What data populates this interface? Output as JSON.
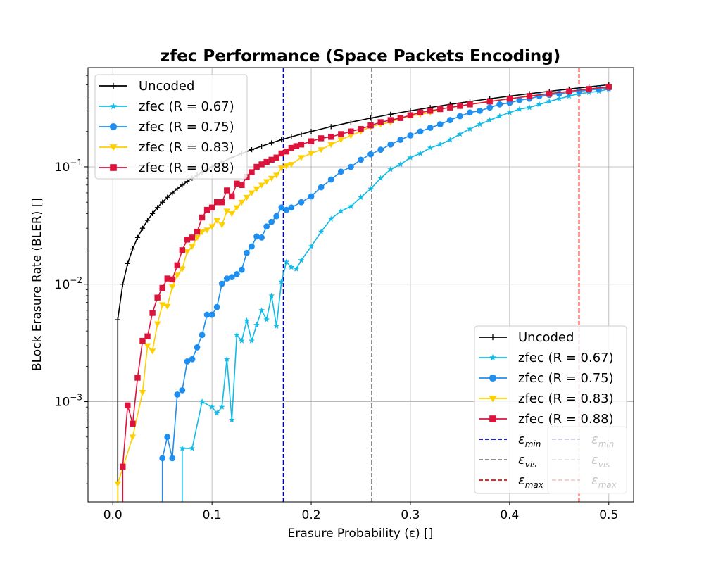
{
  "chart_data": {
    "type": "line",
    "title": "zfec Performance (Space Packets Encoding)",
    "xlabel": "Erasure Probability (ε) []",
    "ylabel": "BLock Erasure Rate (BLER) []",
    "xlim": [
      -0.025,
      0.525
    ],
    "ylim": [
      0.00014,
      0.7
    ],
    "yscale": "log",
    "grid": true,
    "x_ticks": [
      0.0,
      0.1,
      0.2,
      0.3,
      0.4,
      0.5
    ],
    "x_tick_labels": [
      "0.0",
      "0.1",
      "0.2",
      "0.3",
      "0.4",
      "0.5"
    ],
    "y_ticks": [
      0.001,
      0.01,
      0.1
    ],
    "y_tick_labels": [
      {
        "base": "10",
        "exp": "−3"
      },
      {
        "base": "10",
        "exp": "−2"
      },
      {
        "base": "10",
        "exp": "−1"
      }
    ],
    "vlines": [
      {
        "label": "ε",
        "sub": "min",
        "x": 0.172,
        "color": "#0000cc"
      },
      {
        "label": "ε",
        "sub": "vis",
        "x": 0.261,
        "color": "#808080"
      },
      {
        "label": "ε",
        "sub": "max",
        "x": 0.47,
        "color": "#dd1111"
      }
    ],
    "legend_positions": [
      "upper-left",
      "lower-right"
    ],
    "series": [
      {
        "name": "Uncoded",
        "color": "#000000",
        "marker": "plus",
        "x": [
          0.005,
          0.01,
          0.015,
          0.02,
          0.025,
          0.03,
          0.035,
          0.04,
          0.045,
          0.05,
          0.055,
          0.06,
          0.065,
          0.07,
          0.075,
          0.08,
          0.085,
          0.09,
          0.095,
          0.1,
          0.11,
          0.12,
          0.13,
          0.14,
          0.15,
          0.16,
          0.17,
          0.18,
          0.19,
          0.2,
          0.22,
          0.24,
          0.26,
          0.28,
          0.3,
          0.32,
          0.34,
          0.36,
          0.38,
          0.4,
          0.42,
          0.44,
          0.46,
          0.48,
          0.5
        ],
        "y": [
          0.005,
          0.01,
          0.015,
          0.02,
          0.025,
          0.03,
          0.035,
          0.04,
          0.045,
          0.05,
          0.055,
          0.06,
          0.065,
          0.07,
          0.075,
          0.08,
          0.085,
          0.09,
          0.095,
          0.1,
          0.11,
          0.12,
          0.13,
          0.14,
          0.15,
          0.16,
          0.17,
          0.18,
          0.19,
          0.2,
          0.22,
          0.24,
          0.26,
          0.28,
          0.3,
          0.32,
          0.34,
          0.36,
          0.38,
          0.4,
          0.42,
          0.44,
          0.46,
          0.48,
          0.5
        ]
      },
      {
        "name": "zfec (R = 0.67)",
        "color": "#11bbe8",
        "marker": "star",
        "x": [
          0.07,
          0.08,
          0.09,
          0.1,
          0.105,
          0.11,
          0.115,
          0.12,
          0.125,
          0.13,
          0.135,
          0.14,
          0.145,
          0.15,
          0.155,
          0.16,
          0.165,
          0.17,
          0.175,
          0.18,
          0.185,
          0.19,
          0.2,
          0.21,
          0.22,
          0.23,
          0.24,
          0.25,
          0.26,
          0.27,
          0.28,
          0.29,
          0.3,
          0.31,
          0.32,
          0.33,
          0.34,
          0.35,
          0.36,
          0.37,
          0.38,
          0.39,
          0.4,
          0.41,
          0.42,
          0.43,
          0.44,
          0.45,
          0.46,
          0.47,
          0.48,
          0.49,
          0.5
        ],
        "y": [
          0.0004,
          0.0004,
          0.001,
          0.0009,
          0.0008,
          0.0009,
          0.0023,
          0.0007,
          0.0037,
          0.0033,
          0.0049,
          0.0033,
          0.0045,
          0.006,
          0.005,
          0.008,
          0.0044,
          0.0105,
          0.0155,
          0.014,
          0.0135,
          0.016,
          0.021,
          0.028,
          0.036,
          0.042,
          0.046,
          0.055,
          0.065,
          0.08,
          0.095,
          0.105,
          0.12,
          0.13,
          0.145,
          0.155,
          0.17,
          0.19,
          0.21,
          0.23,
          0.25,
          0.27,
          0.29,
          0.31,
          0.32,
          0.34,
          0.36,
          0.38,
          0.4,
          0.42,
          0.43,
          0.44,
          0.46
        ]
      },
      {
        "name": "zfec (R = 0.75)",
        "color": "#1e8ff0",
        "marker": "circle",
        "x": [
          0.05,
          0.055,
          0.06,
          0.065,
          0.07,
          0.075,
          0.08,
          0.085,
          0.09,
          0.095,
          0.1,
          0.105,
          0.11,
          0.115,
          0.12,
          0.125,
          0.13,
          0.135,
          0.14,
          0.145,
          0.15,
          0.155,
          0.16,
          0.165,
          0.17,
          0.175,
          0.18,
          0.19,
          0.2,
          0.21,
          0.22,
          0.23,
          0.24,
          0.25,
          0.26,
          0.27,
          0.28,
          0.29,
          0.3,
          0.31,
          0.32,
          0.33,
          0.34,
          0.35,
          0.36,
          0.37,
          0.38,
          0.39,
          0.4,
          0.41,
          0.42,
          0.43,
          0.44,
          0.45,
          0.46,
          0.47,
          0.48,
          0.49,
          0.5
        ],
        "y": [
          0.00033,
          0.0005,
          0.00033,
          0.00115,
          0.00125,
          0.0022,
          0.0023,
          0.0029,
          0.0037,
          0.0055,
          0.0055,
          0.0064,
          0.0101,
          0.0112,
          0.0115,
          0.0122,
          0.0133,
          0.0185,
          0.021,
          0.0255,
          0.025,
          0.031,
          0.034,
          0.038,
          0.045,
          0.043,
          0.045,
          0.05,
          0.056,
          0.067,
          0.078,
          0.091,
          0.1,
          0.115,
          0.128,
          0.14,
          0.155,
          0.17,
          0.185,
          0.2,
          0.215,
          0.23,
          0.25,
          0.27,
          0.29,
          0.3,
          0.32,
          0.34,
          0.35,
          0.37,
          0.38,
          0.4,
          0.41,
          0.42,
          0.43,
          0.44,
          0.45,
          0.46,
          0.47
        ]
      },
      {
        "name": "zfec (R = 0.83)",
        "color": "#ffd000",
        "marker": "triangle-down",
        "x": [
          0.005,
          0.02,
          0.03,
          0.035,
          0.04,
          0.045,
          0.05,
          0.055,
          0.06,
          0.065,
          0.07,
          0.075,
          0.08,
          0.085,
          0.09,
          0.095,
          0.1,
          0.105,
          0.11,
          0.115,
          0.12,
          0.125,
          0.13,
          0.135,
          0.14,
          0.145,
          0.15,
          0.155,
          0.16,
          0.165,
          0.17,
          0.175,
          0.18,
          0.19,
          0.2,
          0.21,
          0.22,
          0.23,
          0.24,
          0.25,
          0.26,
          0.27,
          0.28,
          0.29,
          0.3,
          0.31,
          0.32,
          0.33,
          0.34,
          0.35,
          0.36,
          0.38,
          0.4,
          0.42,
          0.44,
          0.46,
          0.48,
          0.5
        ],
        "y": [
          0.0002,
          0.0005,
          0.0012,
          0.003,
          0.0027,
          0.0046,
          0.0067,
          0.0065,
          0.0095,
          0.012,
          0.0135,
          0.019,
          0.021,
          0.025,
          0.028,
          0.029,
          0.031,
          0.035,
          0.032,
          0.042,
          0.04,
          0.045,
          0.05,
          0.055,
          0.06,
          0.065,
          0.07,
          0.075,
          0.08,
          0.085,
          0.098,
          0.102,
          0.105,
          0.12,
          0.13,
          0.14,
          0.155,
          0.17,
          0.185,
          0.2,
          0.22,
          0.23,
          0.24,
          0.26,
          0.27,
          0.28,
          0.29,
          0.31,
          0.32,
          0.33,
          0.34,
          0.36,
          0.38,
          0.4,
          0.42,
          0.44,
          0.46,
          0.48
        ]
      },
      {
        "name": "zfec (R = 0.88)",
        "color": "#dc143c",
        "marker": "square",
        "x": [
          0.01,
          0.015,
          0.02,
          0.025,
          0.03,
          0.035,
          0.04,
          0.045,
          0.05,
          0.055,
          0.06,
          0.065,
          0.07,
          0.075,
          0.08,
          0.085,
          0.09,
          0.095,
          0.1,
          0.105,
          0.11,
          0.115,
          0.12,
          0.125,
          0.13,
          0.135,
          0.14,
          0.145,
          0.15,
          0.155,
          0.16,
          0.165,
          0.17,
          0.175,
          0.18,
          0.185,
          0.19,
          0.2,
          0.21,
          0.22,
          0.23,
          0.24,
          0.25,
          0.26,
          0.27,
          0.28,
          0.29,
          0.3,
          0.31,
          0.32,
          0.33,
          0.34,
          0.35,
          0.36,
          0.38,
          0.4,
          0.42,
          0.44,
          0.46,
          0.48,
          0.5
        ],
        "y": [
          0.00028,
          0.00093,
          0.00065,
          0.0016,
          0.0033,
          0.0036,
          0.0057,
          0.0077,
          0.0093,
          0.0112,
          0.011,
          0.0145,
          0.0195,
          0.024,
          0.025,
          0.028,
          0.037,
          0.043,
          0.045,
          0.05,
          0.05,
          0.063,
          0.056,
          0.072,
          0.07,
          0.082,
          0.09,
          0.1,
          0.105,
          0.11,
          0.115,
          0.12,
          0.13,
          0.135,
          0.145,
          0.15,
          0.155,
          0.165,
          0.175,
          0.18,
          0.19,
          0.2,
          0.21,
          0.225,
          0.24,
          0.25,
          0.26,
          0.275,
          0.29,
          0.3,
          0.31,
          0.32,
          0.33,
          0.34,
          0.36,
          0.38,
          0.4,
          0.42,
          0.44,
          0.46,
          0.48
        ]
      }
    ]
  }
}
